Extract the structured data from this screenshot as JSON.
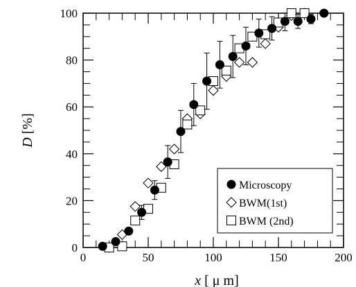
{
  "chart_data": {
    "type": "scatter",
    "title": "",
    "xlabel": "x [ μ m]",
    "xlabel_parts": [
      "x",
      " [ μ m]"
    ],
    "ylabel": "D [%]",
    "ylabel_parts": [
      "D",
      " [%]"
    ],
    "xlim": [
      0,
      200
    ],
    "ylim": [
      0,
      100
    ],
    "xticks": [
      0,
      50,
      100,
      150,
      200
    ],
    "yticks": [
      0,
      20,
      40,
      60,
      80,
      100
    ],
    "grid": false,
    "legend_placement": "bottom-right",
    "series": [
      {
        "name": "Microscopy",
        "marker": "filled-circle",
        "color": "#000000",
        "points": [
          {
            "x": 15,
            "y": 0.5,
            "err": 0
          },
          {
            "x": 25,
            "y": 2.5,
            "err": 0
          },
          {
            "x": 35,
            "y": 7,
            "err": 0
          },
          {
            "x": 45,
            "y": 15,
            "err": 3
          },
          {
            "x": 55,
            "y": 24.5,
            "err": 4
          },
          {
            "x": 65,
            "y": 36.5,
            "err": 7
          },
          {
            "x": 75,
            "y": 49.5,
            "err": 9
          },
          {
            "x": 85,
            "y": 61,
            "err": 9
          },
          {
            "x": 95,
            "y": 71,
            "err": 12
          },
          {
            "x": 105,
            "y": 78,
            "err": 10
          },
          {
            "x": 115,
            "y": 81.5,
            "err": 9
          },
          {
            "x": 125,
            "y": 86,
            "err": 8
          },
          {
            "x": 135,
            "y": 91.5,
            "err": 6
          },
          {
            "x": 145,
            "y": 93.5,
            "err": 5
          },
          {
            "x": 155,
            "y": 96.5,
            "err": 4
          },
          {
            "x": 165,
            "y": 96.5,
            "err": 3
          },
          {
            "x": 175,
            "y": 97.5,
            "err": 2
          },
          {
            "x": 185,
            "y": 100,
            "err": 0
          }
        ]
      },
      {
        "name": "BWM(1st)",
        "marker": "open-diamond",
        "color": "#000000",
        "points": [
          {
            "x": 20,
            "y": 0
          },
          {
            "x": 30,
            "y": 5.5
          },
          {
            "x": 40,
            "y": 17.5
          },
          {
            "x": 50,
            "y": 27.5
          },
          {
            "x": 60,
            "y": 34.5
          },
          {
            "x": 70,
            "y": 42
          },
          {
            "x": 80,
            "y": 55
          },
          {
            "x": 90,
            "y": 57
          },
          {
            "x": 100,
            "y": 67
          },
          {
            "x": 110,
            "y": 73
          },
          {
            "x": 120,
            "y": 79
          },
          {
            "x": 130,
            "y": 79
          },
          {
            "x": 140,
            "y": 87
          },
          {
            "x": 150,
            "y": 94
          },
          {
            "x": 160,
            "y": 99
          },
          {
            "x": 170,
            "y": 100
          }
        ]
      },
      {
        "name": "BWM (2nd)",
        "marker": "open-square",
        "color": "#000000",
        "points": [
          {
            "x": 20,
            "y": 0
          },
          {
            "x": 30,
            "y": 0.5
          },
          {
            "x": 40,
            "y": 11.5
          },
          {
            "x": 50,
            "y": 16.5
          },
          {
            "x": 60,
            "y": 25.5
          },
          {
            "x": 70,
            "y": 35.5
          },
          {
            "x": 80,
            "y": 52.5
          },
          {
            "x": 90,
            "y": 58.5
          },
          {
            "x": 100,
            "y": 71
          },
          {
            "x": 110,
            "y": 75.5
          },
          {
            "x": 120,
            "y": 85
          },
          {
            "x": 130,
            "y": 90
          },
          {
            "x": 140,
            "y": 91
          },
          {
            "x": 150,
            "y": 96
          },
          {
            "x": 160,
            "y": 100
          },
          {
            "x": 170,
            "y": 100
          }
        ]
      }
    ]
  }
}
